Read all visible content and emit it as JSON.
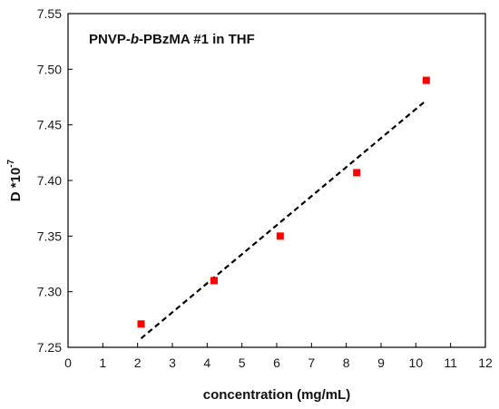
{
  "chart_data": {
    "type": "scatter",
    "title_parts": [
      "PNVP-",
      "b",
      "-PBzMA #1 in THF"
    ],
    "xlabel": "concentration (mg/mL)",
    "ylabel_main": "D *10",
    "ylabel_sup": "-7",
    "xlim": [
      0,
      12
    ],
    "ylim": [
      7.25,
      7.55
    ],
    "xticks": [
      0,
      1,
      2,
      3,
      4,
      5,
      6,
      7,
      8,
      9,
      10,
      11,
      12
    ],
    "yticks": [
      7.25,
      7.3,
      7.35,
      7.4,
      7.45,
      7.5,
      7.55
    ],
    "ytick_labels": [
      "7.25",
      "7.30",
      "7.35",
      "7.40",
      "7.45",
      "7.50",
      "7.55"
    ],
    "grid": false,
    "series": [
      {
        "marker": "square",
        "color": "#ff0000",
        "points": [
          {
            "x": 2.1,
            "y": 7.271
          },
          {
            "x": 4.2,
            "y": 7.31
          },
          {
            "x": 6.1,
            "y": 7.35
          },
          {
            "x": 8.3,
            "y": 7.407
          },
          {
            "x": 10.3,
            "y": 7.49
          }
        ]
      }
    ],
    "fit_line": {
      "style": "dashed",
      "color": "#000000",
      "x": [
        2.1,
        10.3
      ],
      "y": [
        7.258,
        7.472
      ]
    }
  }
}
